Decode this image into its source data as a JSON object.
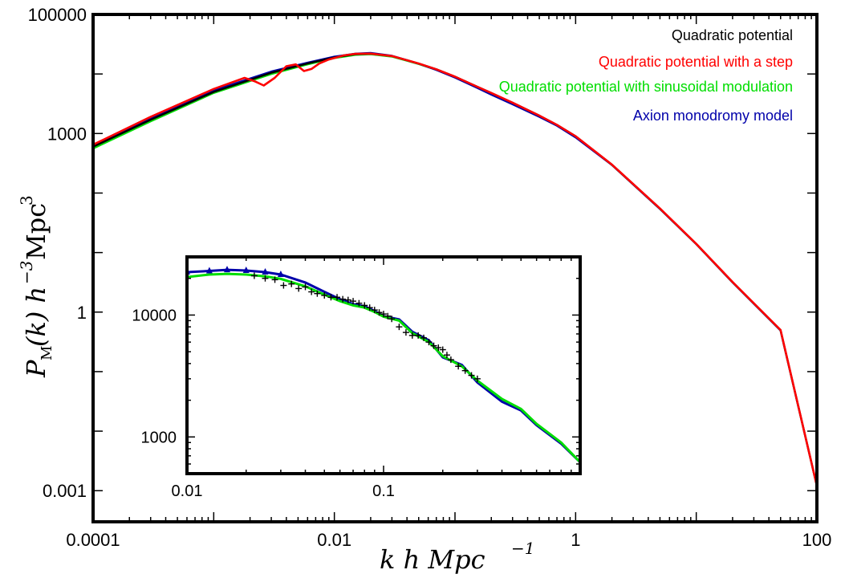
{
  "chart_data": [
    {
      "type": "line",
      "xscale": "log",
      "yscale": "log",
      "xlim": [
        0.0001,
        100
      ],
      "ylim": [
        0.0003,
        100000
      ],
      "xlabel": "k h Mpc⁻¹",
      "ylabel": "P_M(k) h⁻³ Mpc³",
      "x_tick_labels": [
        "0.0001",
        "0.01",
        "1",
        "100"
      ],
      "y_tick_labels": [
        "100000",
        "1000",
        "1",
        "0.001"
      ],
      "legend_position": "top-right",
      "legend": [
        {
          "label": "Quadratic potential",
          "color": "#000000"
        },
        {
          "label": "Quadratic potential with a step",
          "color": "#ff0000"
        },
        {
          "label": "Quadratic potential with sinusoidal modulation",
          "color": "#00dd00"
        },
        {
          "label": "Axion monodromy model",
          "color": "#0000aa"
        }
      ],
      "series": [
        {
          "name": "Quadratic potential",
          "color": "#000000",
          "x": [
            0.0001,
            0.0003,
            0.001,
            0.003,
            0.006,
            0.01,
            0.015,
            0.02,
            0.03,
            0.05,
            0.07,
            0.1,
            0.15,
            0.2,
            0.3,
            0.5,
            0.7,
            1,
            2,
            5,
            10,
            20,
            50,
            100
          ],
          "y": [
            600,
            1700,
            5000,
            10500,
            15000,
            19000,
            21500,
            22000,
            20000,
            15000,
            12000,
            9000,
            6200,
            4800,
            3300,
            2000,
            1400,
            900,
            300,
            55,
            14,
            3.2,
            0.5,
            0.0012
          ]
        },
        {
          "name": "Quadratic potential with a step",
          "color": "#ff0000",
          "x": [
            0.0001,
            0.0003,
            0.001,
            0.0018,
            0.0022,
            0.0026,
            0.0032,
            0.004,
            0.0048,
            0.0056,
            0.0065,
            0.0075,
            0.009,
            0.012,
            0.015,
            0.02,
            0.03,
            0.05,
            0.07,
            0.1,
            0.15,
            0.2,
            0.3,
            0.5,
            0.7,
            1,
            2,
            5,
            10,
            20,
            50,
            100
          ],
          "y": [
            650,
            1900,
            5600,
            8600,
            7500,
            6400,
            8600,
            13500,
            14500,
            11200,
            12200,
            15000,
            17500,
            20500,
            21800,
            22000,
            20000,
            15000,
            12000,
            9000,
            6200,
            4800,
            3300,
            2000,
            1400,
            900,
            300,
            55,
            14,
            3.2,
            0.5,
            0.0012
          ]
        },
        {
          "name": "Quadratic potential with sinusoidal modulation",
          "color": "#00dd00",
          "x": [
            0.0001,
            0.0003,
            0.001,
            0.003,
            0.006,
            0.01,
            0.015,
            0.02,
            0.03,
            0.05,
            0.07,
            0.1,
            0.15,
            0.2,
            0.3,
            0.5,
            0.7,
            1,
            2,
            5,
            10,
            20,
            50,
            100
          ],
          "y": [
            560,
            1600,
            4800,
            10000,
            14500,
            18500,
            21000,
            21500,
            19600,
            14700,
            11800,
            8800,
            6000,
            4650,
            3200,
            1950,
            1380,
            880,
            295,
            54,
            13.8,
            3.15,
            0.49,
            0.0012
          ]
        },
        {
          "name": "Axion monodromy model",
          "color": "#0000aa",
          "x": [
            0.0001,
            0.0003,
            0.001,
            0.003,
            0.006,
            0.01,
            0.015,
            0.02,
            0.03,
            0.05,
            0.07,
            0.1,
            0.15,
            0.2,
            0.3,
            0.5,
            0.7,
            1,
            2,
            5,
            10,
            20,
            50,
            100
          ],
          "y": [
            620,
            1800,
            5300,
            11000,
            15500,
            19500,
            22000,
            22500,
            20200,
            14900,
            11700,
            8700,
            5950,
            4500,
            3100,
            1900,
            1350,
            860,
            295,
            54,
            13.8,
            3.15,
            0.49,
            0.0012
          ]
        }
      ]
    },
    {
      "type": "line",
      "xscale": "log",
      "yscale": "log",
      "xlim": [
        0.01,
        1
      ],
      "ylim": [
        500,
        30000
      ],
      "x_tick_labels": [
        "0.01",
        "0.1"
      ],
      "y_tick_labels": [
        "10000",
        "1000"
      ],
      "series": [
        {
          "name": "Axion monodromy model",
          "color": "#0000aa",
          "x": [
            0.01,
            0.013,
            0.016,
            0.02,
            0.025,
            0.03,
            0.04,
            0.05,
            0.06,
            0.07,
            0.08,
            0.09,
            0.1,
            0.12,
            0.14,
            0.17,
            0.2,
            0.25,
            0.3,
            0.4,
            0.5,
            0.6,
            0.8,
            1
          ],
          "y": [
            22500,
            23000,
            23500,
            23200,
            22500,
            21500,
            18500,
            15500,
            13500,
            12300,
            11800,
            10800,
            9800,
            9200,
            7300,
            6200,
            4500,
            3900,
            2800,
            1950,
            1650,
            1250,
            880,
            620
          ]
        },
        {
          "name": "Quadratic potential with sinusoidal modulation",
          "color": "#00dd00",
          "x": [
            0.01,
            0.013,
            0.016,
            0.02,
            0.025,
            0.03,
            0.04,
            0.05,
            0.06,
            0.07,
            0.08,
            0.09,
            0.1,
            0.12,
            0.14,
            0.17,
            0.2,
            0.25,
            0.3,
            0.4,
            0.5,
            0.6,
            0.8,
            1
          ],
          "y": [
            20500,
            21500,
            21800,
            21500,
            20800,
            19800,
            17200,
            14700,
            13000,
            12000,
            11500,
            10600,
            9700,
            9000,
            7100,
            6000,
            4600,
            3800,
            2900,
            2050,
            1700,
            1280,
            900,
            620
          ]
        },
        {
          "name": "Quadratic potential",
          "color": "#000000",
          "x": [
            0.022,
            0.025,
            0.028,
            0.031,
            0.034,
            0.037,
            0.04,
            0.043,
            0.046,
            0.05,
            0.054,
            0.058,
            0.062,
            0.066,
            0.07,
            0.075,
            0.08,
            0.085,
            0.09,
            0.095,
            0.1,
            0.105,
            0.11,
            0.12,
            0.13,
            0.14,
            0.15,
            0.16,
            0.17,
            0.18,
            0.19,
            0.2,
            0.21,
            0.22,
            0.24,
            0.26,
            0.28,
            0.3
          ],
          "y": [
            21000,
            20000,
            19500,
            17500,
            18000,
            16500,
            17000,
            15500,
            15000,
            14500,
            14000,
            14000,
            13500,
            13300,
            13000,
            12500,
            12000,
            11500,
            11000,
            10500,
            10200,
            9800,
            9300,
            8000,
            7200,
            6800,
            6800,
            6500,
            6000,
            5600,
            5400,
            5200,
            4700,
            4300,
            3800,
            3500,
            3200,
            3000
          ]
        }
      ]
    }
  ]
}
